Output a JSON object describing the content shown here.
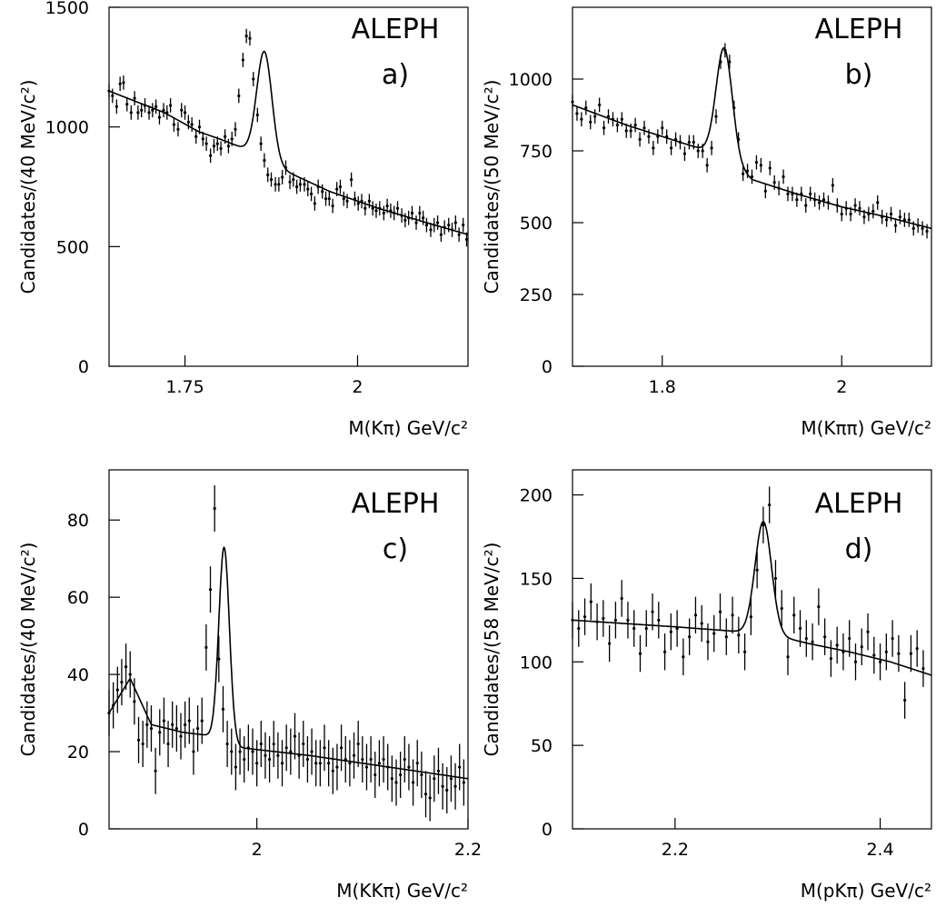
{
  "chart_data": [
    {
      "type": "scatter",
      "panel_tag": "a)",
      "experiment_label": "ALEPH",
      "xlabel": "M(Kπ) GeV/c²",
      "ylabel": "Candidates/(40 MeV/c²)",
      "xlim": [
        1.64,
        2.16
      ],
      "ylim": [
        0,
        1500
      ],
      "xticks": [
        1.75,
        2
      ],
      "xtick_labels": [
        "1.75",
        "2"
      ],
      "yticks": [
        0,
        500,
        1000,
        1500
      ],
      "ytick_labels": [
        "0",
        "500",
        "1000",
        "1500"
      ],
      "fit": {
        "background": [
          [
            1.64,
            1150
          ],
          [
            1.72,
            1060
          ],
          [
            1.77,
            980
          ],
          [
            1.8,
            950
          ],
          [
            1.84,
            905
          ],
          [
            1.9,
            810
          ],
          [
            1.96,
            730
          ],
          [
            2.03,
            660
          ],
          [
            2.1,
            600
          ],
          [
            2.16,
            550
          ]
        ],
        "peak": {
          "mean": 1.865,
          "sigma": 0.011,
          "amplitude": 450
        }
      },
      "series": [
        {
          "x": [
            1.64,
            1.645,
            1.651,
            1.656,
            1.661,
            1.666,
            1.672,
            1.677,
            1.682,
            1.687,
            1.692,
            1.698,
            1.703,
            1.708,
            1.713,
            1.719,
            1.724,
            1.729,
            1.734,
            1.74,
            1.745,
            1.75,
            1.755,
            1.76,
            1.766,
            1.771,
            1.776,
            1.781,
            1.787,
            1.792,
            1.797,
            1.802,
            1.808,
            1.813,
            1.818,
            1.823,
            1.828,
            1.834,
            1.839,
            1.844,
            1.849,
            1.855,
            1.86,
            1.865,
            1.87,
            1.875,
            1.881,
            1.886,
            1.891,
            1.896,
            1.902,
            1.907,
            1.912,
            1.917,
            1.923,
            1.928,
            1.933,
            1.938,
            1.943,
            1.949,
            1.954,
            1.959,
            1.964,
            1.97,
            1.975,
            1.98,
            1.985,
            1.991,
            1.996,
            2.001,
            2.006,
            2.011,
            2.017,
            2.022,
            2.027,
            2.032,
            2.038,
            2.043,
            2.048,
            2.053,
            2.058,
            2.064,
            2.069,
            2.074,
            2.079,
            2.085,
            2.09,
            2.095,
            2.1,
            2.106,
            2.111,
            2.116,
            2.121,
            2.126,
            2.132,
            2.137,
            2.142,
            2.147,
            2.153,
            2.158
          ],
          "y": [
            1150,
            1130,
            1085,
            1180,
            1185,
            1095,
            1060,
            1120,
            1060,
            1070,
            1090,
            1060,
            1070,
            1085,
            1040,
            1070,
            1060,
            1090,
            1010,
            990,
            1070,
            1060,
            1020,
            1010,
            960,
            1000,
            950,
            930,
            880,
            920,
            930,
            910,
            960,
            920,
            950,
            990,
            1130,
            1280,
            1380,
            1370,
            1200,
            1050,
            930,
            860,
            800,
            780,
            760,
            760,
            790,
            830,
            770,
            780,
            750,
            760,
            760,
            740,
            720,
            680,
            750,
            730,
            700,
            700,
            670,
            740,
            750,
            700,
            690,
            780,
            700,
            680,
            690,
            660,
            690,
            660,
            650,
            660,
            640,
            670,
            650,
            640,
            660,
            630,
            610,
            620,
            640,
            600,
            640,
            620,
            590,
            570,
            590,
            600,
            550,
            580,
            590,
            570,
            600,
            550,
            590,
            530
          ],
          "error": 30
        }
      ]
    },
    {
      "type": "scatter",
      "panel_tag": "b)",
      "experiment_label": "ALEPH",
      "xlabel": "M(Kππ) GeV/c²",
      "ylabel": "Candidates/(50 MeV/c²)",
      "xlim": [
        1.7,
        2.1
      ],
      "ylim": [
        0,
        1250
      ],
      "xticks": [
        1.8,
        2
      ],
      "xtick_labels": [
        "1.8",
        "2"
      ],
      "yticks": [
        0,
        250,
        500,
        750,
        1000
      ],
      "ytick_labels": [
        "0",
        "250",
        "500",
        "750",
        "1000"
      ],
      "fit": {
        "background": [
          [
            1.7,
            910
          ],
          [
            1.76,
            840
          ],
          [
            1.82,
            780
          ],
          [
            1.85,
            750
          ],
          [
            1.88,
            700
          ],
          [
            1.9,
            650
          ],
          [
            1.95,
            600
          ],
          [
            2.0,
            555
          ],
          [
            2.05,
            520
          ],
          [
            2.1,
            480
          ]
        ],
        "peak": {
          "mean": 1.869,
          "sigma": 0.009,
          "amplitude": 390
        }
      },
      "series": [
        {
          "x": [
            1.7,
            1.705,
            1.71,
            1.715,
            1.72,
            1.725,
            1.73,
            1.735,
            1.74,
            1.745,
            1.75,
            1.755,
            1.76,
            1.765,
            1.77,
            1.775,
            1.78,
            1.785,
            1.79,
            1.795,
            1.8,
            1.805,
            1.81,
            1.815,
            1.82,
            1.825,
            1.83,
            1.835,
            1.84,
            1.845,
            1.85,
            1.855,
            1.86,
            1.865,
            1.87,
            1.875,
            1.88,
            1.885,
            1.89,
            1.895,
            1.9,
            1.905,
            1.91,
            1.915,
            1.92,
            1.925,
            1.93,
            1.935,
            1.94,
            1.945,
            1.95,
            1.955,
            1.96,
            1.965,
            1.97,
            1.975,
            1.98,
            1.985,
            1.99,
            1.995,
            2.0,
            2.005,
            2.01,
            2.015,
            2.02,
            2.025,
            2.03,
            2.035,
            2.04,
            2.045,
            2.05,
            2.055,
            2.06,
            2.065,
            2.07,
            2.075,
            2.08,
            2.085,
            2.09,
            2.095
          ],
          "y": [
            920,
            880,
            860,
            900,
            850,
            870,
            910,
            830,
            870,
            860,
            840,
            860,
            820,
            820,
            840,
            790,
            830,
            800,
            760,
            800,
            830,
            800,
            760,
            790,
            780,
            740,
            780,
            780,
            750,
            750,
            700,
            760,
            870,
            1060,
            1100,
            1060,
            900,
            790,
            670,
            680,
            660,
            710,
            700,
            610,
            690,
            640,
            620,
            660,
            600,
            600,
            580,
            600,
            560,
            600,
            580,
            570,
            580,
            570,
            630,
            560,
            530,
            550,
            530,
            560,
            550,
            520,
            530,
            540,
            570,
            520,
            510,
            530,
            490,
            520,
            510,
            510,
            480,
            490,
            480,
            470
          ],
          "error": 25
        }
      ]
    },
    {
      "type": "scatter",
      "panel_tag": "c)",
      "experiment_label": "ALEPH",
      "xlabel": "M(KKπ) GeV/c²",
      "ylabel": "Candidates/(40 MeV/c²)",
      "xlim": [
        1.86,
        2.2
      ],
      "ylim": [
        0,
        93
      ],
      "xticks": [
        2,
        2.2
      ],
      "xtick_labels": [
        "2",
        "2.2"
      ],
      "yticks": [
        0,
        20,
        40,
        60,
        80
      ],
      "ytick_labels": [
        "0",
        "20",
        "40",
        "60",
        "80"
      ],
      "fit": {
        "background": [
          [
            1.86,
            30
          ],
          [
            1.88,
            39
          ],
          [
            1.9,
            27
          ],
          [
            1.93,
            25
          ],
          [
            1.96,
            24
          ],
          [
            1.985,
            21
          ],
          [
            2.05,
            19
          ],
          [
            2.1,
            17
          ],
          [
            2.15,
            15
          ],
          [
            2.2,
            13
          ]
        ],
        "peak": {
          "mean": 1.969,
          "sigma": 0.005,
          "amplitude": 50
        }
      },
      "series": [
        {
          "x": [
            1.86,
            1.864,
            1.868,
            1.872,
            1.876,
            1.88,
            1.884,
            1.888,
            1.892,
            1.896,
            1.9,
            1.904,
            1.908,
            1.912,
            1.916,
            1.92,
            1.924,
            1.928,
            1.932,
            1.936,
            1.94,
            1.944,
            1.948,
            1.952,
            1.956,
            1.96,
            1.964,
            1.968,
            1.972,
            1.976,
            1.98,
            1.984,
            1.988,
            1.992,
            1.996,
            2.0,
            2.004,
            2.008,
            2.012,
            2.016,
            2.02,
            2.024,
            2.028,
            2.032,
            2.036,
            2.04,
            2.044,
            2.048,
            2.052,
            2.056,
            2.06,
            2.064,
            2.068,
            2.072,
            2.076,
            2.08,
            2.084,
            2.088,
            2.092,
            2.096,
            2.1,
            2.104,
            2.108,
            2.112,
            2.116,
            2.12,
            2.124,
            2.128,
            2.132,
            2.136,
            2.14,
            2.144,
            2.148,
            2.152,
            2.156,
            2.16,
            2.164,
            2.168,
            2.172,
            2.176,
            2.18,
            2.184,
            2.188,
            2.192,
            2.196
          ],
          "y": [
            30,
            32,
            36,
            38,
            42,
            40,
            33,
            23,
            22,
            27,
            26,
            15,
            25,
            28,
            22,
            27,
            26,
            24,
            27,
            28,
            20,
            26,
            28,
            47,
            62,
            83,
            44,
            31,
            22,
            20,
            16,
            20,
            18,
            21,
            20,
            17,
            22,
            19,
            18,
            22,
            19,
            17,
            21,
            20,
            24,
            19,
            22,
            18,
            20,
            17,
            17,
            21,
            17,
            15,
            16,
            21,
            18,
            17,
            19,
            22,
            18,
            16,
            18,
            14,
            17,
            18,
            16,
            13,
            12,
            14,
            18,
            16,
            12,
            17,
            14,
            9,
            8,
            13,
            15,
            11,
            10,
            13,
            11,
            16,
            12
          ],
          "error": 6
        }
      ]
    },
    {
      "type": "scatter",
      "panel_tag": "d)",
      "experiment_label": "ALEPH",
      "xlabel": "M(pKπ) GeV/c²",
      "ylabel": "Candidates/(58 MeV/c²)",
      "xlim": [
        2.1,
        2.45
      ],
      "ylim": [
        0,
        215
      ],
      "xticks": [
        2.2,
        2.4
      ],
      "xtick_labels": [
        "2.2",
        "2.4"
      ],
      "yticks": [
        0,
        50,
        100,
        150,
        200
      ],
      "ytick_labels": [
        "0",
        "50",
        "100",
        "150",
        "200"
      ],
      "fit": {
        "background": [
          [
            2.1,
            125
          ],
          [
            2.15,
            123
          ],
          [
            2.2,
            121
          ],
          [
            2.265,
            118
          ],
          [
            2.29,
            118
          ],
          [
            2.31,
            114
          ],
          [
            2.33,
            111
          ],
          [
            2.37,
            106
          ],
          [
            2.41,
            100
          ],
          [
            2.45,
            92
          ]
        ],
        "peak": {
          "mean": 2.286,
          "sigma": 0.008,
          "amplitude": 66
        }
      },
      "series": [
        {
          "x": [
            2.1,
            2.106,
            2.112,
            2.118,
            2.124,
            2.13,
            2.136,
            2.142,
            2.148,
            2.154,
            2.16,
            2.166,
            2.172,
            2.178,
            2.184,
            2.19,
            2.196,
            2.202,
            2.208,
            2.214,
            2.22,
            2.226,
            2.232,
            2.238,
            2.244,
            2.25,
            2.256,
            2.262,
            2.268,
            2.274,
            2.28,
            2.286,
            2.292,
            2.298,
            2.304,
            2.31,
            2.316,
            2.322,
            2.328,
            2.334,
            2.34,
            2.346,
            2.352,
            2.358,
            2.364,
            2.37,
            2.376,
            2.382,
            2.388,
            2.394,
            2.4,
            2.406,
            2.412,
            2.418,
            2.424,
            2.43,
            2.436,
            2.442
          ],
          "y": [
            125,
            120,
            127,
            136,
            124,
            126,
            111,
            125,
            138,
            125,
            120,
            105,
            120,
            130,
            125,
            106,
            118,
            120,
            103,
            115,
            128,
            123,
            112,
            117,
            130,
            115,
            128,
            116,
            106,
            127,
            155,
            182,
            194,
            150,
            132,
            103,
            128,
            120,
            114,
            112,
            133,
            115,
            102,
            110,
            106,
            114,
            100,
            109,
            118,
            104,
            100,
            106,
            114,
            105,
            77,
            105,
            108,
            96
          ],
          "error": 11
        }
      ]
    }
  ]
}
